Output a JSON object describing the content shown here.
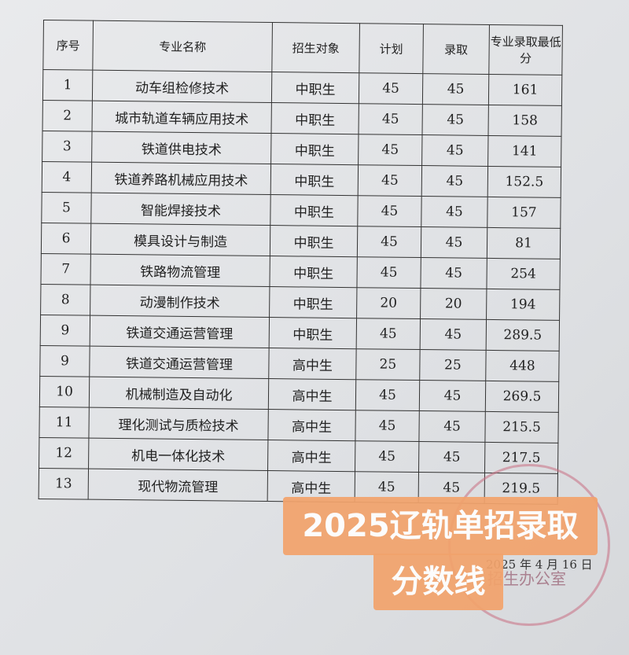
{
  "table": {
    "headers": [
      "序号",
      "专业名称",
      "招生对象",
      "计划",
      "录取",
      "专业录取最低分"
    ],
    "rows": [
      [
        "1",
        "动车组检修技术",
        "中职生",
        "45",
        "45",
        "161"
      ],
      [
        "2",
        "城市轨道车辆应用技术",
        "中职生",
        "45",
        "45",
        "158"
      ],
      [
        "3",
        "铁道供电技术",
        "中职生",
        "45",
        "45",
        "141"
      ],
      [
        "4",
        "铁道养路机械应用技术",
        "中职生",
        "45",
        "45",
        "152.5"
      ],
      [
        "5",
        "智能焊接技术",
        "中职生",
        "45",
        "45",
        "157"
      ],
      [
        "6",
        "模具设计与制造",
        "中职生",
        "45",
        "45",
        "81"
      ],
      [
        "7",
        "铁路物流管理",
        "中职生",
        "45",
        "45",
        "254"
      ],
      [
        "8",
        "动漫制作技术",
        "中职生",
        "20",
        "20",
        "194"
      ],
      [
        "9",
        "铁道交通运营管理",
        "中职生",
        "45",
        "45",
        "289.5"
      ],
      [
        "9",
        "铁道交通运营管理",
        "高中生",
        "25",
        "25",
        "448"
      ],
      [
        "10",
        "机械制造及自动化",
        "高中生",
        "45",
        "45",
        "269.5"
      ],
      [
        "11",
        "理化测试与质检技术",
        "高中生",
        "45",
        "45",
        "215.5"
      ],
      [
        "12",
        "机电一体化技术",
        "高中生",
        "45",
        "45",
        "217.5"
      ],
      [
        "13",
        "现代物流管理",
        "高中生",
        "45",
        "45",
        "219.5"
      ]
    ]
  },
  "seal": {
    "text": "辽宁轨道交通职业学院 招生办公室",
    "color": "#c86e82"
  },
  "date": "2025 年 4 月 16 日",
  "overlay": {
    "line1": "2025辽轨单招录取",
    "line2": "分数线",
    "color": "#f2a36c"
  }
}
